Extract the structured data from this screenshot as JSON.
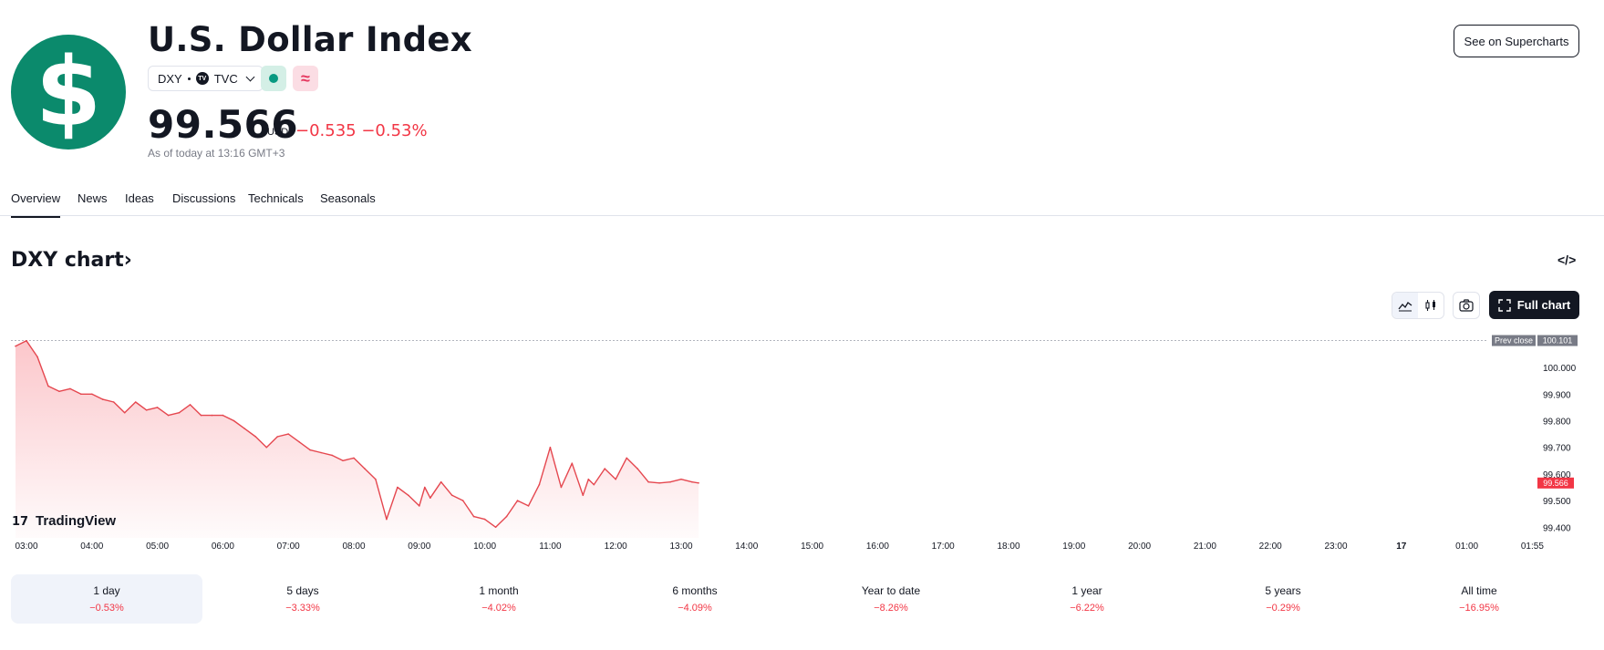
{
  "header": {
    "logo_glyph": "$",
    "title": "U.S. Dollar Index",
    "ticker": "DXY",
    "exchange_logo": "TV",
    "exchange": "TVC",
    "market_status_icon": "market-open-dot-icon",
    "delayed_icon_glyph": "≈",
    "price": "99.566",
    "currency": "USD",
    "change": "−0.535 −0.53%",
    "as_of": "As of today at 13:16 GMT+3",
    "supercharts_button": "See on Supercharts"
  },
  "colors": {
    "logo_bg": "#0b8a6c",
    "negative": "#f23645",
    "line": "#e5474f",
    "button_dark": "#131722"
  },
  "tabs": [
    {
      "label": "Overview",
      "active": true
    },
    {
      "label": "News",
      "active": false
    },
    {
      "label": "Ideas",
      "active": false
    },
    {
      "label": "Discussions",
      "active": false
    },
    {
      "label": "Technicals",
      "active": false
    },
    {
      "label": "Seasonals",
      "active": false
    }
  ],
  "chart_section": {
    "title": "DXY chart",
    "title_chevron": "›",
    "embed_glyph": "</>",
    "full_chart_label": "Full chart",
    "watermark": "TradingView"
  },
  "chart_data": {
    "type": "area",
    "prev_close_label": "Prev close",
    "prev_close": 100.101,
    "last_value": 99.566,
    "last_value_label": "99.566",
    "ylim": [
      99.36,
      100.12
    ],
    "yticks": [
      "100.000",
      "99.900",
      "99.800",
      "99.700",
      "99.600",
      "99.500",
      "99.400"
    ],
    "x_ticks": [
      "03:00",
      "04:00",
      "05:00",
      "06:00",
      "07:00",
      "08:00",
      "09:00",
      "10:00",
      "11:00",
      "12:00",
      "13:00",
      "14:00",
      "15:00",
      "16:00",
      "17:00",
      "18:00",
      "19:00",
      "20:00",
      "21:00",
      "22:00",
      "23:00",
      "17",
      "01:00",
      "01:55"
    ],
    "series": [
      {
        "x": [
          "02:50",
          "03:00",
          "03:10",
          "03:20",
          "03:30",
          "03:40",
          "03:50",
          "04:00",
          "04:10",
          "04:20",
          "04:30",
          "04:40",
          "04:50",
          "05:00",
          "05:10",
          "05:20",
          "05:30",
          "05:40",
          "05:50",
          "06:00",
          "06:10",
          "06:20",
          "06:30",
          "06:40",
          "06:50",
          "07:00",
          "07:10",
          "07:20",
          "07:30",
          "07:40",
          "07:50",
          "08:00",
          "08:10",
          "08:20",
          "08:30",
          "08:40",
          "08:50",
          "09:00",
          "09:05",
          "09:10",
          "09:20",
          "09:30",
          "09:40",
          "09:50",
          "10:00",
          "10:10",
          "10:20",
          "10:30",
          "10:40",
          "10:50",
          "11:00",
          "11:10",
          "11:20",
          "11:30",
          "11:35",
          "11:40",
          "11:50",
          "12:00",
          "12:10",
          "12:20",
          "12:30",
          "12:40",
          "12:50",
          "13:00",
          "13:10",
          "13:16"
        ],
        "values": [
          100.08,
          100.1,
          100.04,
          99.93,
          99.91,
          99.92,
          99.9,
          99.9,
          99.88,
          99.87,
          99.83,
          99.87,
          99.84,
          99.85,
          99.82,
          99.83,
          99.86,
          99.82,
          99.82,
          99.82,
          99.8,
          99.77,
          99.74,
          99.7,
          99.74,
          99.75,
          99.72,
          99.69,
          99.68,
          99.67,
          99.65,
          99.66,
          99.62,
          99.58,
          99.43,
          99.55,
          99.52,
          99.48,
          99.55,
          99.51,
          99.57,
          99.52,
          99.5,
          99.44,
          99.43,
          99.4,
          99.44,
          99.5,
          99.48,
          99.56,
          99.7,
          99.55,
          99.64,
          99.52,
          99.58,
          99.56,
          99.62,
          99.58,
          99.66,
          99.62,
          99.57,
          99.566,
          99.57,
          99.58,
          99.57,
          99.566
        ]
      }
    ]
  },
  "periods": [
    {
      "label": "1 day",
      "change": "−0.53%",
      "active": true
    },
    {
      "label": "5 days",
      "change": "−3.33%",
      "active": false
    },
    {
      "label": "1 month",
      "change": "−4.02%",
      "active": false
    },
    {
      "label": "6 months",
      "change": "−4.09%",
      "active": false
    },
    {
      "label": "Year to date",
      "change": "−8.26%",
      "active": false
    },
    {
      "label": "1 year",
      "change": "−6.22%",
      "active": false
    },
    {
      "label": "5 years",
      "change": "−0.29%",
      "active": false
    },
    {
      "label": "All time",
      "change": "−16.95%",
      "active": false
    }
  ]
}
